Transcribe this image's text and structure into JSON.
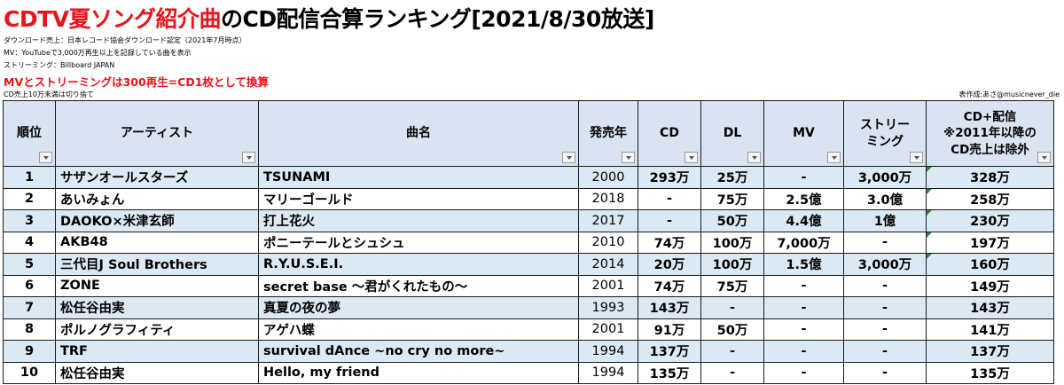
{
  "title": {
    "highlight": "CDTV夏ソング紹介曲",
    "rest": "のCD配信合算ランキング[2021/8/30放送]"
  },
  "notes": [
    "ダウンロード売上：日本レコード協会ダウンロード認定（2021年7月時点）",
    "MV：YouTubeで3,000万再生以上を記録している曲を表示",
    "ストリーミング：Billboard JAPAN"
  ],
  "emphasis": "MVとストリーミングは300再生=CD1枚として換算",
  "footnote": "CD売上10万未満は切り捨て",
  "credit": "表作成:あさ@musicnever_die",
  "headers": {
    "rank": "順位",
    "artist": "アーティスト",
    "song": "曲名",
    "year": "発売年",
    "cd": "CD",
    "dl": "DL",
    "mv": "MV",
    "streaming_1": "ストリー",
    "streaming_2": "ミング",
    "total_1": "CD+配信",
    "total_2": "※2011年以降の",
    "total_3": "CD売上は除外"
  },
  "rows": [
    {
      "rank": "1",
      "artist": "サザンオールスターズ",
      "song": "TSUNAMI",
      "year": "2000",
      "cd": "293万",
      "dl": "25万",
      "mv": "-",
      "streaming": "3,000万",
      "total": "328万"
    },
    {
      "rank": "2",
      "artist": "あいみょん",
      "song": "マリーゴールド",
      "year": "2018",
      "cd": "-",
      "dl": "75万",
      "mv": "2.5億",
      "streaming": "3.0億",
      "total": "258万"
    },
    {
      "rank": "3",
      "artist": "DAOKO×米津玄師",
      "song": "打上花火",
      "year": "2017",
      "cd": "-",
      "dl": "50万",
      "mv": "4.4億",
      "streaming": "1億",
      "total": "230万"
    },
    {
      "rank": "4",
      "artist": "AKB48",
      "song": "ポニーテールとシュシュ",
      "year": "2010",
      "cd": "74万",
      "dl": "100万",
      "mv": "7,000万",
      "streaming": "-",
      "total": "197万"
    },
    {
      "rank": "5",
      "artist": "三代目J Soul Brothers",
      "song": "R.Y.U.S.E.I.",
      "year": "2014",
      "cd": "20万",
      "dl": "100万",
      "mv": "1.5億",
      "streaming": "3,000万",
      "total": "160万"
    },
    {
      "rank": "6",
      "artist": "ZONE",
      "song": "secret base ～君がくれたもの～",
      "year": "2001",
      "cd": "74万",
      "dl": "75万",
      "mv": "-",
      "streaming": "-",
      "total": "149万"
    },
    {
      "rank": "7",
      "artist": "松任谷由実",
      "song": "真夏の夜の夢",
      "year": "1993",
      "cd": "143万",
      "dl": "-",
      "mv": "-",
      "streaming": "-",
      "total": "143万"
    },
    {
      "rank": "8",
      "artist": "ポルノグラフィティ",
      "song": "アゲハ蝶",
      "year": "2001",
      "cd": "91万",
      "dl": "50万",
      "mv": "-",
      "streaming": "-",
      "total": "141万"
    },
    {
      "rank": "9",
      "artist": "TRF",
      "song": "survival dAnce ~no cry no more~",
      "year": "1994",
      "cd": "137万",
      "dl": "-",
      "mv": "-",
      "streaming": "-",
      "total": "137万"
    },
    {
      "rank": "10",
      "artist": "松任谷由実",
      "song": "Hello, my friend",
      "year": "1994",
      "cd": "135万",
      "dl": "-",
      "mv": "-",
      "streaming": "-",
      "total": "135万"
    }
  ]
}
